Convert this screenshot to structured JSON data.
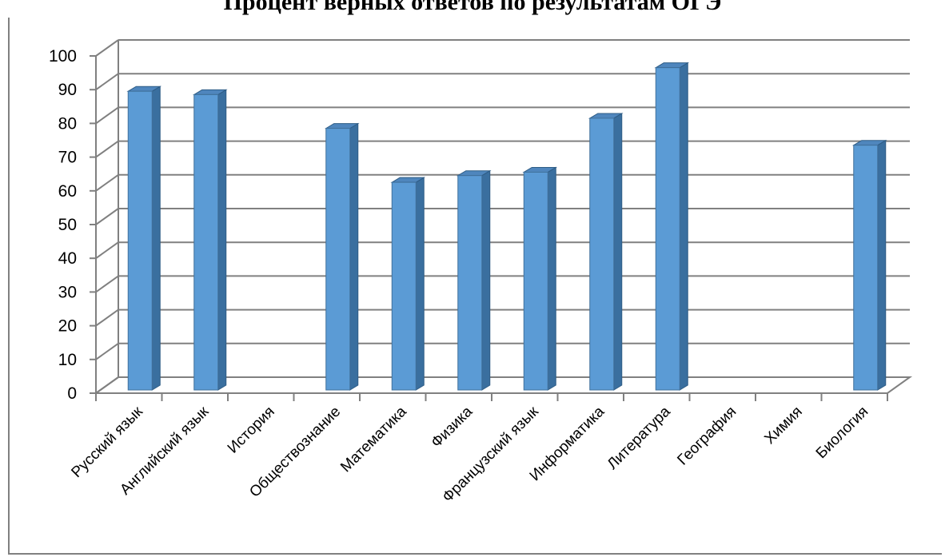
{
  "chart_data": {
    "type": "bar",
    "title": "Процент верных ответов по результатам ОГЭ",
    "categories": [
      "Русский язык",
      "Английский язык",
      "История",
      "Обществознание",
      "Математика",
      "Физика",
      "Французский язык",
      "Информатика",
      "Литература",
      "География",
      "Химия",
      "Биология"
    ],
    "series": [
      {
        "values": [
          90,
          89,
          null,
          79,
          63,
          65,
          66,
          82,
          97,
          null,
          null,
          74
        ]
      }
    ],
    "ylim": [
      0,
      100
    ],
    "yticks": [
      0,
      10,
      20,
      30,
      40,
      50,
      60,
      70,
      80,
      90,
      100
    ],
    "grid": true,
    "legend": "none",
    "bar_color": "#5b9bd5",
    "bar_side_color": "#3a6f9f",
    "bar_top_color": "#4f86bd",
    "grid_color": "#808080"
  }
}
